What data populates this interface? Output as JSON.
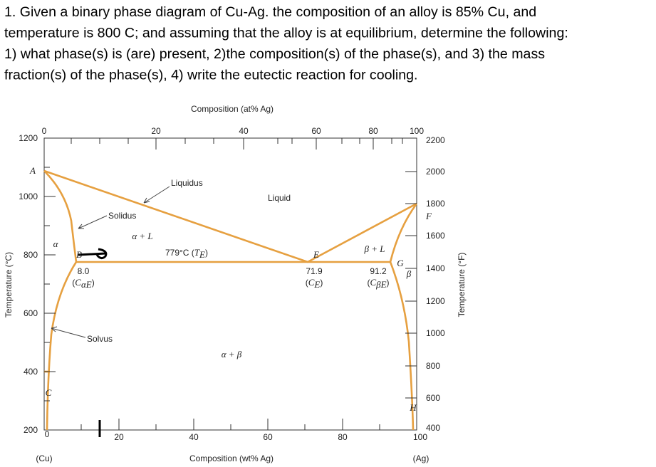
{
  "question": [
    "1. Given a binary phase diagram of Cu-Ag. the composition of an alloy is 85% Cu, and",
    "temperature is 800 C; and assuming that the alloy is at equilibrium, determine the following:",
    "1) what phase(s) is (are) present, 2)the composition(s) of the phase(s), and 3) the mass",
    "fraction(s) of the phase(s), 4) write the eutectic reaction for cooling."
  ],
  "diagram": {
    "top_axis_title": "Composition (at% Ag)",
    "bottom_axis_title": "Composition (wt% Ag)",
    "left_axis_title": "Temperature (°C)",
    "right_axis_title": "Temperature (°F)",
    "top_ticks": [
      0,
      20,
      40,
      60,
      80,
      100
    ],
    "bottom_ticks": [
      0,
      20,
      40,
      60,
      80,
      100
    ],
    "left_ticks": [
      1200,
      1000,
      800,
      600,
      400,
      200
    ],
    "right_ticks": [
      2200,
      2000,
      1800,
      1600,
      1400,
      1200,
      1000,
      800,
      600,
      400
    ],
    "end_labels": [
      "(Cu)",
      "(Ag)"
    ],
    "regions": {
      "liquid": "Liquid",
      "alpha_l": "α + L",
      "beta_l": "β + L",
      "alpha": "α",
      "beta": "β",
      "alpha_beta": "α + β"
    },
    "curves": {
      "liquidus": "Liquidus",
      "solidus": "Solidus",
      "solvus": "Solvus"
    },
    "points": {
      "A": "A",
      "B": "B",
      "C": "C",
      "E": "E",
      "F": "F",
      "G": "G",
      "H": "H"
    },
    "eutectic": {
      "temperature": [
        "779°C (",
        "T",
        "E",
        ")"
      ],
      "c_ae": {
        "value": "8.0",
        "label": [
          "(",
          "C",
          "αE",
          ")"
        ]
      },
      "c_e": {
        "value": "71.9",
        "label": [
          "(",
          "C",
          "E",
          ")"
        ]
      },
      "c_be": {
        "value": "91.2",
        "label": [
          "(",
          "C",
          "βE",
          ")"
        ]
      }
    }
  }
}
